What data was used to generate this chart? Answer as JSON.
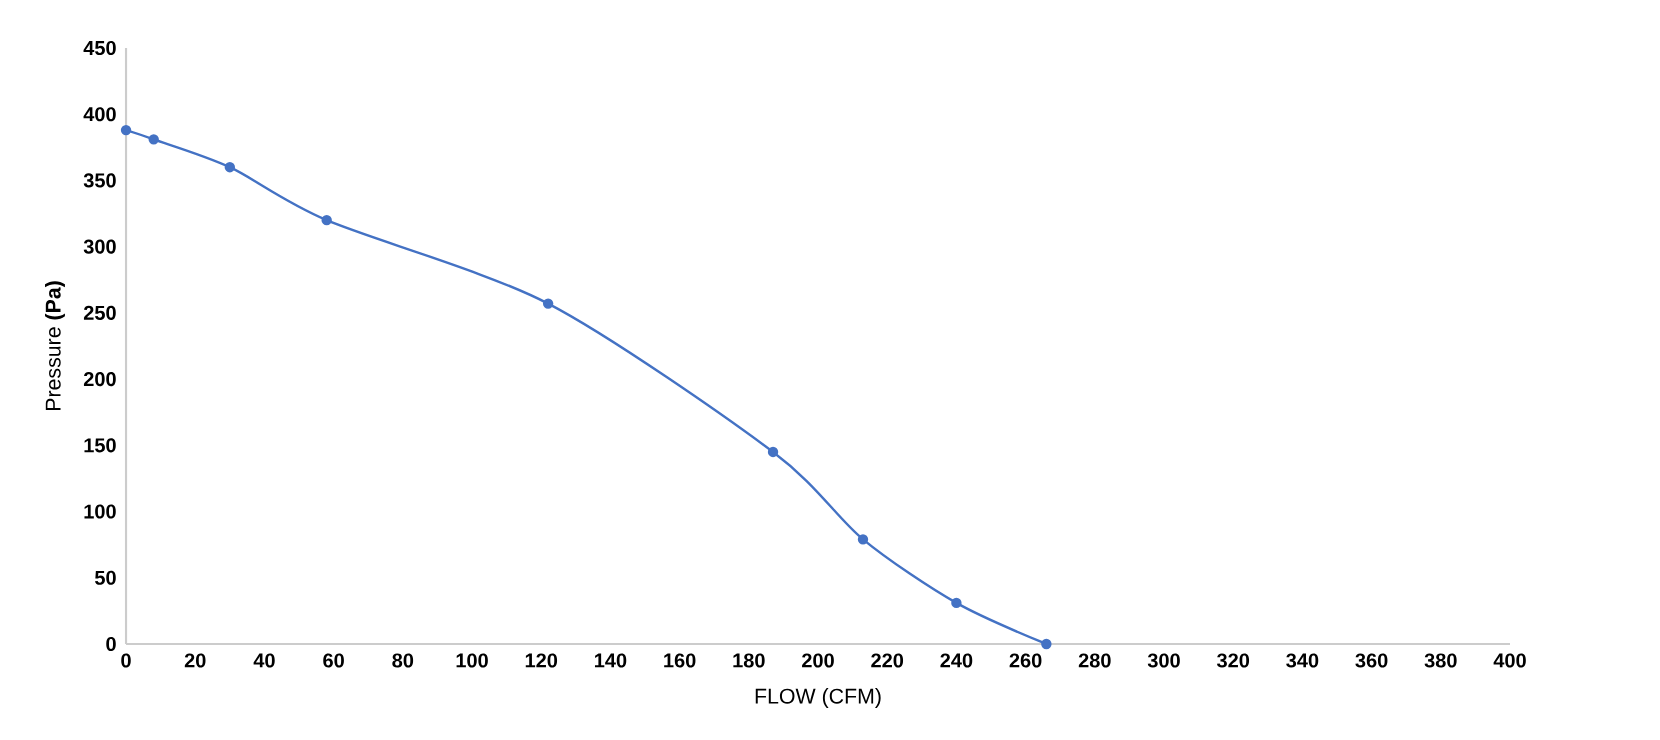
{
  "chart_data": {
    "type": "line",
    "xlabel": "FLOW (CFM)",
    "ylabel": "Pressure **(Pa)**",
    "x": [
      0,
      8,
      30,
      58,
      122,
      187,
      213,
      240,
      266
    ],
    "series": [
      {
        "color": "#4472c4",
        "values": [
          388,
          381,
          360,
          320,
          257,
          145,
          79,
          31,
          0
        ]
      }
    ],
    "xlim": [
      0,
      400
    ],
    "ylim": [
      0,
      450
    ],
    "xticks": [
      0,
      20,
      40,
      60,
      80,
      100,
      120,
      140,
      160,
      180,
      200,
      220,
      240,
      260,
      280,
      300,
      320,
      340,
      360,
      380,
      400
    ],
    "yticks": [
      0,
      50,
      100,
      150,
      200,
      250,
      300,
      350,
      400,
      450
    ],
    "marker": "circle",
    "line_style": "solid"
  }
}
